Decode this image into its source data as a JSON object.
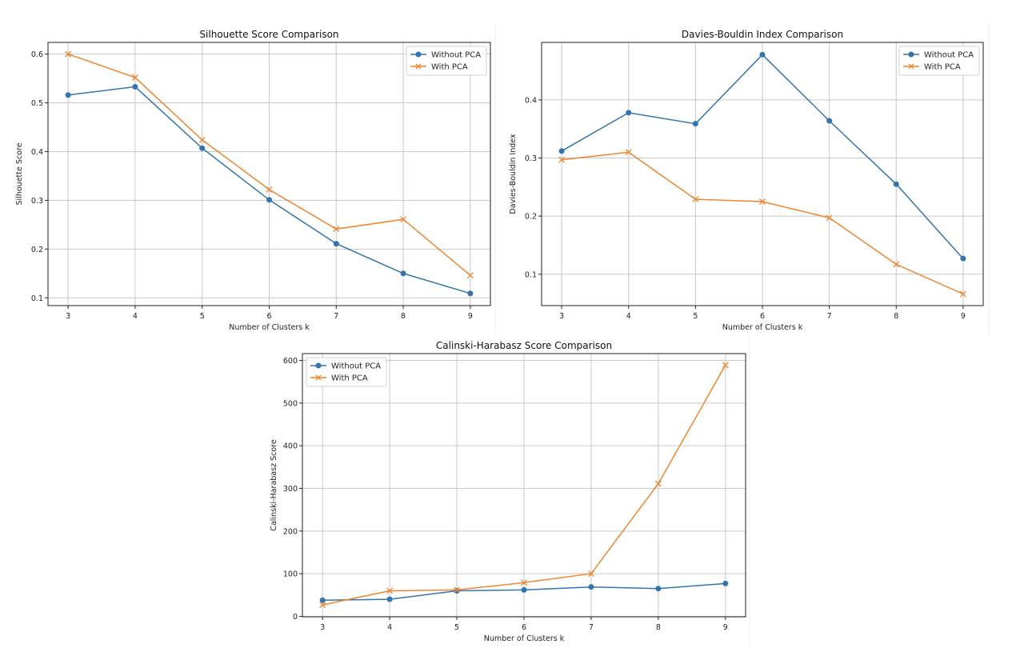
{
  "colors": {
    "without_pca": "#3274b0",
    "with_pca": "#f0852d",
    "grid": "#c8c8c8"
  },
  "chart_data": [
    {
      "type": "line",
      "title": "Silhouette Score Comparison",
      "xlabel": "Number of Clusters k",
      "ylabel": "Silhouette Score",
      "x": [
        3,
        4,
        5,
        6,
        7,
        8,
        9
      ],
      "xticks": [
        "3",
        "4",
        "5",
        "6",
        "7",
        "8",
        "9"
      ],
      "yticks": [
        "0.1",
        "0.2",
        "0.3",
        "0.4",
        "0.5",
        "0.6"
      ],
      "xlim": [
        2.7,
        9.3
      ],
      "ylim": [
        0.084,
        0.624
      ],
      "grid": true,
      "legend_position": "top-right",
      "series": [
        {
          "name": "Without PCA",
          "marker": "circle",
          "values": [
            0.516,
            0.533,
            0.407,
            0.301,
            0.211,
            0.15,
            0.109
          ]
        },
        {
          "name": "With PCA",
          "marker": "x",
          "values": [
            0.6,
            0.552,
            0.424,
            0.322,
            0.241,
            0.261,
            0.146
          ]
        }
      ]
    },
    {
      "type": "line",
      "title": "Davies-Bouldin Index Comparison",
      "xlabel": "Number of Clusters k",
      "ylabel": "Davies-Bouldin Index",
      "x": [
        3,
        4,
        5,
        6,
        7,
        8,
        9
      ],
      "xticks": [
        "3",
        "4",
        "5",
        "6",
        "7",
        "8",
        "9"
      ],
      "yticks": [
        "0.1",
        "0.2",
        "0.3",
        "0.4"
      ],
      "xlim": [
        2.7,
        9.3
      ],
      "ylim": [
        0.046,
        0.499
      ],
      "grid": true,
      "legend_position": "top-right",
      "series": [
        {
          "name": "Without PCA",
          "marker": "circle",
          "values": [
            0.312,
            0.378,
            0.359,
            0.478,
            0.364,
            0.255,
            0.127
          ]
        },
        {
          "name": "With PCA",
          "marker": "x",
          "values": [
            0.297,
            0.31,
            0.229,
            0.225,
            0.197,
            0.117,
            0.066
          ]
        }
      ]
    },
    {
      "type": "line",
      "title": "Calinski-Harabasz Score Comparison",
      "xlabel": "Number of Clusters k",
      "ylabel": "Calinski-Harabasz Score",
      "x": [
        3,
        4,
        5,
        6,
        7,
        8,
        9
      ],
      "xticks": [
        "3",
        "4",
        "5",
        "6",
        "7",
        "8",
        "9"
      ],
      "yticks": [
        "0",
        "100",
        "200",
        "300",
        "400",
        "500",
        "600"
      ],
      "xlim": [
        2.7,
        9.3
      ],
      "ylim": [
        -1,
        616
      ],
      "grid": true,
      "legend_position": "top-left",
      "series": [
        {
          "name": "Without PCA",
          "marker": "circle",
          "values": [
            38,
            40,
            60,
            62,
            69,
            65,
            77
          ]
        },
        {
          "name": "With PCA",
          "marker": "x",
          "values": [
            27,
            60,
            62,
            79,
            100,
            311,
            589
          ]
        }
      ]
    }
  ]
}
